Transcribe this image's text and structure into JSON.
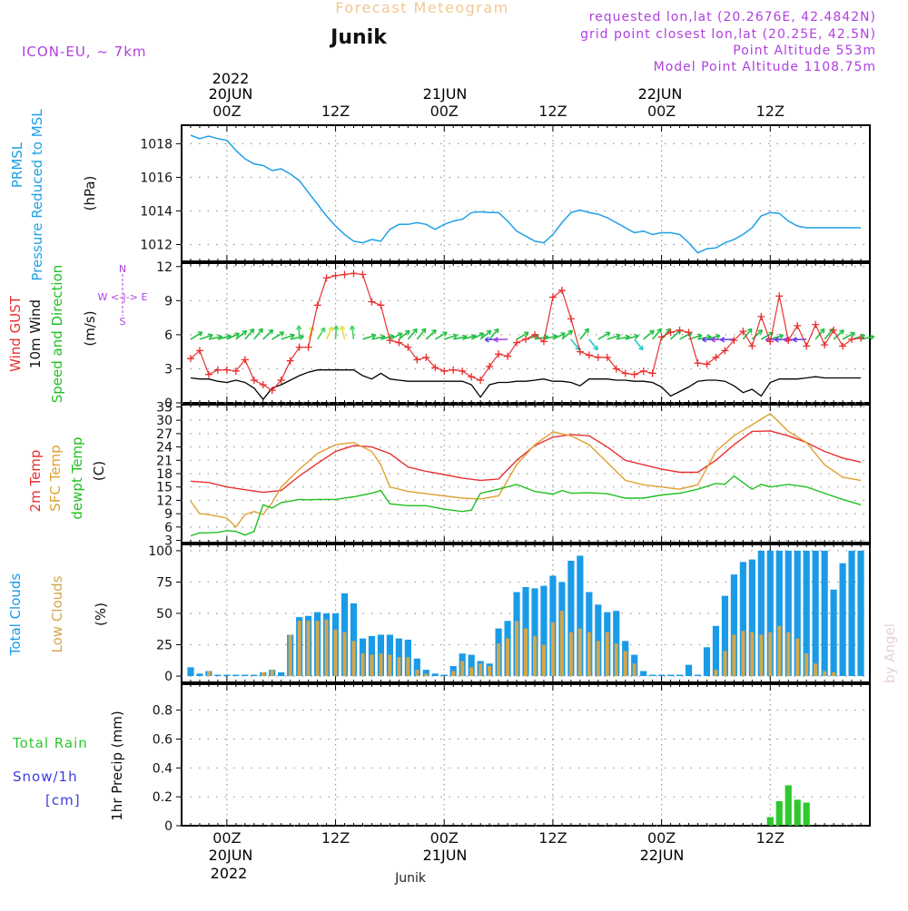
{
  "header": {
    "product": "Forecast Meteogram",
    "location": "Junik",
    "model": "ICON-EU, ~ 7km",
    "requested": "requested lon,lat (20.2676E, 42.4842N)",
    "gridpoint": "grid point closest lon,lat (20.25E, 42.5N)",
    "point_alt": "Point Altitude 553m",
    "model_alt": "Model Point Altitude 1108.75m",
    "footer_location": "Junik",
    "watermark": "by Angel"
  },
  "time_axis": {
    "top_year": "2022",
    "top_date_20": "20JUN",
    "top_date_21": "21JUN",
    "top_date_22": "22JUN",
    "bottom_date_20": "20JUN",
    "bottom_date_21": "21JUN",
    "bottom_date_22": "22JUN",
    "bottom_year": "2022",
    "tick_labels": [
      "00Z",
      "12Z",
      "00Z",
      "12Z",
      "00Z",
      "12Z"
    ],
    "tick_hours": [
      0,
      12,
      24,
      36,
      48,
      60
    ],
    "x_range_hours": [
      -5,
      71
    ]
  },
  "panel_labels": {
    "p1_a": "PRMSL",
    "p1_b": "Pressure Reduced to MSL",
    "p1_unit": "(hPa)",
    "p2_a": "Wind GUST",
    "p2_b": "10m Wind",
    "p2_c": "Speed and Direction",
    "p2_unit": "(m/s)",
    "compass_n": "N",
    "compass_s": "S",
    "compass_we": "W <-|-> E",
    "p3_a": "2m Temp",
    "p3_b": "SFC Temp",
    "p3_c": "dewpt Temp",
    "p3_unit": "(C)",
    "p4_a": "Total Clouds",
    "p4_b": "Low Clouds",
    "p4_unit": "(%)",
    "p5_a": "Total  Rain",
    "p5_b": "Snow/1h",
    "p5_c": "[cm]",
    "p5_unit": "1hr Precip (mm)"
  },
  "colors": {
    "pressure": "#1ea0e6",
    "gust": "#e83030",
    "wind": "#000000",
    "temp2m": "#e83030",
    "sfctemp": "#e0a030",
    "dewpt": "#20c020",
    "totalclouds": "#1a9be8",
    "lowclouds": "#d4a64a",
    "rain": "#2ec82e",
    "title": "#f0c890",
    "purple": "#b040e0",
    "snow": "#3c3cdc"
  },
  "chart_data": [
    {
      "type": "line",
      "title": "PRMSL Pressure Reduced to MSL",
      "ylabel": "(hPa)",
      "ylim": [
        1011,
        1019.1
      ],
      "yticks": [
        1012,
        1014,
        1016,
        1018
      ],
      "series": [
        {
          "name": "PRMSL",
          "x": [
            -4,
            -3,
            -2,
            -1,
            0,
            1,
            2,
            3,
            4,
            5,
            6,
            7,
            8,
            9,
            10,
            11,
            12,
            13,
            14,
            15,
            16,
            17,
            18,
            19,
            20,
            21,
            22,
            23,
            24,
            25,
            26,
            27,
            28,
            29,
            30,
            31,
            32,
            33,
            34,
            35,
            36,
            37,
            38,
            39,
            40,
            41,
            42,
            43,
            44,
            45,
            46,
            47,
            48,
            49,
            50,
            51,
            52,
            53,
            54,
            55,
            56,
            57,
            58,
            59,
            60,
            61,
            62,
            63,
            64,
            65,
            66,
            67,
            68,
            69,
            70
          ],
          "values": [
            1018.5,
            1018.3,
            1018.45,
            1018.3,
            1018.2,
            1017.6,
            1017.1,
            1016.8,
            1016.7,
            1016.4,
            1016.5,
            1016.2,
            1015.8,
            1015.1,
            1014.4,
            1013.7,
            1013.1,
            1012.6,
            1012.2,
            1012.1,
            1012.3,
            1012.2,
            1012.9,
            1013.2,
            1013.2,
            1013.3,
            1013.2,
            1012.9,
            1013.2,
            1013.4,
            1013.5,
            1013.9,
            1013.95,
            1013.9,
            1013.9,
            1013.4,
            1012.8,
            1012.5,
            1012.2,
            1012.1,
            1012.6,
            1013.3,
            1013.9,
            1014.05,
            1013.9,
            1013.8,
            1013.6,
            1013.3,
            1013.0,
            1012.7,
            1012.8,
            1012.6,
            1012.7,
            1012.7,
            1012.6,
            1012.1,
            1011.5,
            1011.75,
            1011.8,
            1012.1,
            1012.3,
            1012.6,
            1013.0,
            1013.7,
            1013.9,
            1013.85,
            1013.4,
            1013.1,
            1013.0,
            1013.0,
            1013.0,
            1013.0,
            1013.0,
            1013.0,
            1013.0
          ]
        }
      ]
    },
    {
      "type": "line",
      "title": "Wind GUST / 10m Wind Speed and Direction",
      "ylabel": "(m/s)",
      "ylim": [
        0,
        12.3
      ],
      "yticks": [
        0,
        3,
        6,
        9,
        12
      ],
      "series": [
        {
          "name": "Wind GUST",
          "x": [
            -4,
            -3,
            -2,
            -1,
            0,
            1,
            2,
            3,
            4,
            5,
            6,
            7,
            8,
            9,
            10,
            11,
            12,
            13,
            14,
            15,
            16,
            17,
            18,
            19,
            20,
            21,
            22,
            23,
            24,
            25,
            26,
            27,
            28,
            29,
            30,
            31,
            32,
            33,
            34,
            35,
            36,
            37,
            38,
            39,
            40,
            41,
            42,
            43,
            44,
            45,
            46,
            47,
            48,
            49,
            50,
            51,
            52,
            53,
            54,
            55,
            56,
            57,
            58,
            59,
            60,
            61,
            62,
            63,
            64,
            65,
            66,
            67,
            68,
            69,
            70
          ],
          "values": [
            3.9,
            4.6,
            2.5,
            2.9,
            2.9,
            2.8,
            3.8,
            2.0,
            1.6,
            1.1,
            2.0,
            3.7,
            4.9,
            4.9,
            8.6,
            11.0,
            11.2,
            11.3,
            11.4,
            11.3,
            8.9,
            8.6,
            5.5,
            5.3,
            4.9,
            3.8,
            4.0,
            3.1,
            2.8,
            2.9,
            2.8,
            2.3,
            2.0,
            3.2,
            4.3,
            4.1,
            5.3,
            5.6,
            6.0,
            5.4,
            9.3,
            9.9,
            7.4,
            4.5,
            4.2,
            4.0,
            4.0,
            3.0,
            2.6,
            2.5,
            2.8,
            2.6,
            5.8,
            6.2,
            6.4,
            6.2,
            3.5,
            3.4,
            4.0,
            4.6,
            5.5,
            6.3,
            5.0,
            7.6,
            5.4,
            9.4,
            5.5,
            6.8,
            5.0,
            6.9,
            5.1,
            6.4,
            5.0,
            5.6,
            5.7
          ]
        },
        {
          "name": "10m Wind",
          "x": [
            -4,
            -3,
            -2,
            -1,
            0,
            1,
            2,
            3,
            4,
            5,
            6,
            7,
            8,
            9,
            10,
            11,
            12,
            13,
            14,
            15,
            16,
            17,
            18,
            19,
            20,
            21,
            22,
            23,
            24,
            25,
            26,
            27,
            28,
            29,
            30,
            31,
            32,
            33,
            34,
            35,
            36,
            37,
            38,
            39,
            40,
            41,
            42,
            43,
            44,
            45,
            46,
            47,
            48,
            49,
            50,
            51,
            52,
            53,
            54,
            55,
            56,
            57,
            58,
            59,
            60,
            61,
            62,
            63,
            64,
            65,
            66,
            67,
            68,
            69,
            70
          ],
          "values": [
            2.2,
            2.1,
            2.1,
            1.9,
            1.8,
            2.0,
            1.8,
            1.3,
            0.3,
            1.3,
            1.6,
            2.0,
            2.4,
            2.7,
            2.9,
            2.9,
            2.9,
            2.9,
            2.9,
            2.4,
            2.1,
            2.6,
            2.1,
            2.0,
            1.9,
            1.9,
            1.9,
            1.9,
            1.9,
            1.9,
            1.9,
            1.6,
            0.5,
            1.6,
            1.8,
            1.8,
            1.9,
            1.9,
            2.0,
            2.1,
            1.9,
            1.9,
            1.8,
            1.5,
            2.1,
            2.1,
            2.1,
            2.0,
            2.0,
            1.9,
            1.9,
            1.8,
            1.4,
            0.6,
            1.0,
            1.4,
            1.9,
            2.0,
            2.0,
            1.9,
            1.5,
            0.9,
            1.2,
            0.6,
            1.8,
            2.1,
            2.1,
            2.1,
            2.2,
            2.3,
            2.2,
            2.2,
            2.2,
            2.2,
            2.2
          ]
        }
      ]
    },
    {
      "type": "line",
      "title": "2m Temp / SFC Temp / dewpt Temp",
      "ylabel": "(C)",
      "ylim": [
        2.5,
        33.5
      ],
      "yticks": [
        3,
        6,
        9,
        12,
        15,
        18,
        21,
        24,
        27,
        30,
        33
      ],
      "series": [
        {
          "name": "2m Temp",
          "x": [
            -4,
            -2,
            0,
            2,
            4,
            6,
            8,
            10,
            12,
            14,
            16,
            18,
            20,
            22,
            24,
            26,
            28,
            30,
            32,
            34,
            36,
            38,
            40,
            42,
            44,
            46,
            48,
            50,
            52,
            54,
            56,
            58,
            60,
            62,
            64,
            66,
            68,
            70
          ],
          "values": [
            16.3,
            16.0,
            15.0,
            14.4,
            13.8,
            14.2,
            17.5,
            20.3,
            23.0,
            24.3,
            24.0,
            22.5,
            19.5,
            18.5,
            17.8,
            17.0,
            16.5,
            16.8,
            21.0,
            24.3,
            26.2,
            26.8,
            26.5,
            24.0,
            21.0,
            20.0,
            19.0,
            18.3,
            18.3,
            21.0,
            24.5,
            27.5,
            27.6,
            26.5,
            25.0,
            23.0,
            21.5,
            20.6
          ]
        },
        {
          "name": "SFC Temp",
          "x": [
            -4,
            -3,
            -2,
            0,
            1,
            2,
            3,
            4,
            5,
            6,
            8,
            10,
            12,
            14,
            16,
            17,
            18,
            20,
            22,
            24,
            26,
            28,
            30,
            32,
            34,
            36,
            38,
            40,
            42,
            44,
            46,
            48,
            50,
            52,
            54,
            56,
            58,
            60,
            62,
            64,
            66,
            68,
            70
          ],
          "values": [
            11.8,
            9.0,
            8.8,
            8.0,
            6.0,
            8.8,
            9.5,
            8.8,
            11.5,
            15.0,
            19.0,
            22.5,
            24.5,
            25.0,
            23.0,
            20.0,
            15.0,
            14.0,
            13.5,
            13.0,
            12.5,
            12.3,
            13.0,
            20.0,
            24.5,
            27.4,
            26.5,
            24.5,
            20.5,
            16.5,
            15.5,
            15.0,
            14.5,
            15.5,
            23.0,
            26.5,
            29.0,
            31.5,
            27.5,
            25.0,
            20.0,
            17.2,
            16.5
          ]
        },
        {
          "name": "dewpt Temp",
          "x": [
            -4,
            -3,
            -2,
            -1,
            0,
            1,
            2,
            3,
            4,
            5,
            6,
            8,
            9,
            10,
            12,
            14,
            16,
            17,
            18,
            20,
            22,
            24,
            26,
            27,
            28,
            30,
            32,
            34,
            36,
            37,
            38,
            40,
            42,
            44,
            46,
            48,
            50,
            52,
            54,
            55,
            56,
            58,
            59,
            60,
            62,
            64,
            66,
            68,
            70
          ],
          "values": [
            4.0,
            4.7,
            4.7,
            4.8,
            5.2,
            5.0,
            4.2,
            5.0,
            11.0,
            10.3,
            11.5,
            12.2,
            12.1,
            12.2,
            12.2,
            12.8,
            13.6,
            14.2,
            11.2,
            10.8,
            10.8,
            10.0,
            9.5,
            9.8,
            13.6,
            14.5,
            15.6,
            14.0,
            13.4,
            14.2,
            13.6,
            13.7,
            13.5,
            12.5,
            12.5,
            13.2,
            13.6,
            14.5,
            15.8,
            15.6,
            17.5,
            14.5,
            15.6,
            15.0,
            15.6,
            15.0,
            13.6,
            12.2,
            11.0
          ]
        }
      ]
    },
    {
      "type": "bar",
      "title": "Total Clouds / Low Clouds",
      "ylabel": "(%)",
      "ylim": [
        -5,
        105
      ],
      "yticks": [
        0,
        25,
        50,
        75,
        100
      ],
      "x": [
        -4,
        -3,
        -2,
        -1,
        0,
        1,
        2,
        3,
        4,
        5,
        6,
        7,
        8,
        9,
        10,
        11,
        12,
        13,
        14,
        15,
        16,
        17,
        18,
        19,
        20,
        21,
        22,
        23,
        24,
        25,
        26,
        27,
        28,
        29,
        30,
        31,
        32,
        33,
        34,
        35,
        36,
        37,
        38,
        39,
        40,
        41,
        42,
        43,
        44,
        45,
        46,
        47,
        48,
        49,
        50,
        51,
        52,
        53,
        54,
        55,
        56,
        57,
        58,
        59,
        60,
        61,
        62,
        63,
        64,
        65,
        66,
        67,
        68,
        69,
        70
      ],
      "series": [
        {
          "name": "Total Clouds",
          "values": [
            7,
            2,
            4,
            0,
            0,
            0,
            0,
            1,
            3,
            5,
            3,
            33,
            47,
            48,
            51,
            50,
            50,
            66,
            58,
            30,
            32,
            33,
            33,
            30,
            29,
            14,
            5,
            2,
            1,
            8,
            18,
            17,
            12,
            10,
            38,
            44,
            67,
            71,
            70,
            72,
            80,
            75,
            92,
            96,
            67,
            57,
            51,
            52,
            28,
            17,
            4,
            0,
            1,
            1,
            1,
            9,
            1,
            23,
            40,
            64,
            81,
            91,
            93,
            100,
            100,
            100,
            100,
            100,
            100,
            100,
            100,
            69,
            90,
            100,
            100
          ]
        },
        {
          "name": "Low Clouds",
          "values": [
            0,
            0,
            4,
            0,
            0,
            0,
            0,
            0,
            3,
            5,
            0,
            33,
            44,
            44,
            44,
            45,
            37,
            35,
            28,
            18,
            17,
            18,
            17,
            15,
            15,
            5,
            2,
            0,
            0,
            4,
            12,
            7,
            10,
            8,
            26,
            30,
            44,
            38,
            32,
            25,
            43,
            52,
            35,
            38,
            35,
            28,
            35,
            26,
            20,
            10,
            0,
            0,
            0,
            0,
            0,
            0,
            0,
            0,
            5,
            20,
            33,
            36,
            35,
            33,
            35,
            40,
            35,
            30,
            18,
            10,
            4,
            3,
            0,
            0,
            0
          ]
        }
      ]
    },
    {
      "type": "bar",
      "title": "1hr Precip",
      "ylabel": "1hr Precip (mm)",
      "ylim": [
        0,
        0.98
      ],
      "yticks": [
        0,
        0.2,
        0.4,
        0.6,
        0.8
      ],
      "series": [
        {
          "name": "Total Rain",
          "x": [
            60,
            61,
            62,
            63,
            64
          ],
          "values": [
            0.06,
            0.17,
            0.28,
            0.18,
            0.16
          ]
        }
      ]
    }
  ]
}
